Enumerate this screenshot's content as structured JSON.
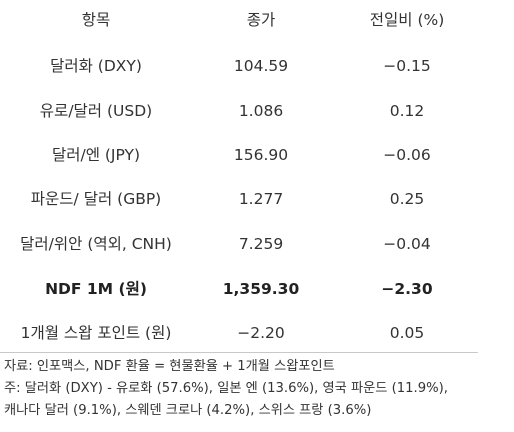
{
  "table": {
    "headers": [
      "항목",
      "종가",
      "전일비 (%)"
    ],
    "rows": [
      {
        "item": "달러화 (DXY)",
        "close": "104.59",
        "change": "−0.15"
      },
      {
        "item": "유로/달러 (USD)",
        "close": "1.086",
        "change": "0.12"
      },
      {
        "item": "달러/엔 (JPY)",
        "close": "156.90",
        "change": "−0.06"
      },
      {
        "item": "파운드/ 달러 (GBP)",
        "close": "1.277",
        "change": "0.25"
      },
      {
        "item": "달러/위안 (역외, CNH)",
        "close": "7.259",
        "change": "−0.04"
      },
      {
        "item": "NDF 1M (원)",
        "close": "1,359.30",
        "change": "−2.30"
      },
      {
        "item": "1개월 스왑 포인트 (원)",
        "close": "−2.20",
        "change": "0.05"
      }
    ]
  },
  "notes": {
    "source": "자료: 인포맥스, NDF 환율 = 현물환율 + 1개월 스왑포인트",
    "note_line1": "주: 달러화 (DXY) - 유로화 (57.6%), 일본 엔 (13.6%), 영국 파운드 (11.9%),",
    "note_line2": "캐나다 달러 (9.1%), 스웨덴 크로나 (4.2%), 스위스 프랑 (3.6%)"
  }
}
